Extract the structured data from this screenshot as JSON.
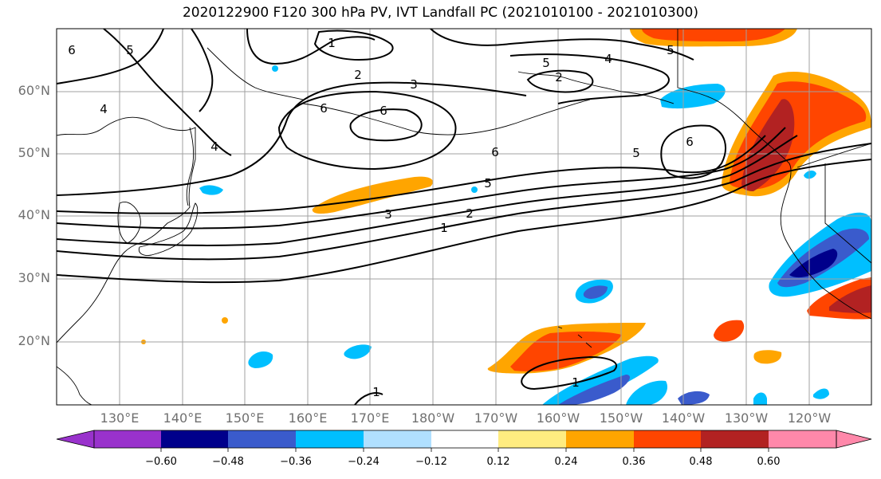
{
  "title": "2020122900 F120 300 hPa PV, IVT Landfall PC (2021010100 - 2021010300)",
  "lat_labels": [
    "60°N",
    "50°N",
    "40°N",
    "30°N",
    "20°N"
  ],
  "lon_labels": [
    "130°E",
    "140°E",
    "150°E",
    "160°E",
    "170°E",
    "180°W",
    "170°W",
    "160°W",
    "150°W",
    "140°W",
    "130°W",
    "120°W"
  ],
  "contour_labels": [
    "1",
    "2",
    "3",
    "4",
    "5",
    "6",
    "6",
    "6",
    "5",
    "6",
    "5",
    "3",
    "2",
    "1",
    "4",
    "5",
    "2",
    "1",
    "4",
    "1",
    "5",
    "6"
  ],
  "colorbar": {
    "ticks": [
      "−0.60",
      "−0.48",
      "−0.36",
      "−0.24",
      "−0.12",
      "0.12",
      "0.24",
      "0.36",
      "0.48",
      "0.60"
    ],
    "colors": [
      "#9932cc",
      "#00008b",
      "#3a5bcc",
      "#00bfff",
      "#b0e0ff",
      "#ffffff",
      "#ffec80",
      "#ffa500",
      "#ff4500",
      "#b22222",
      "#ff88aa"
    ]
  }
}
